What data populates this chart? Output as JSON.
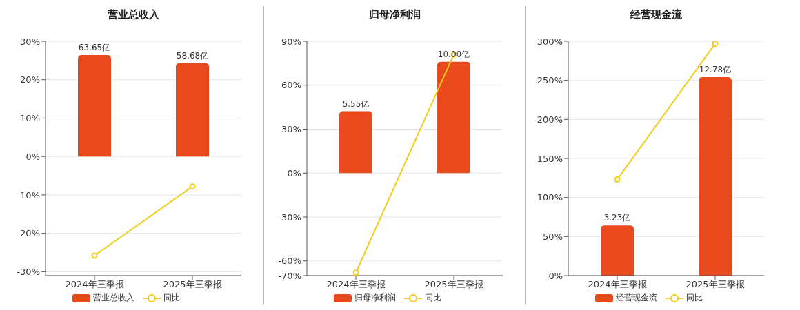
{
  "chart_data": [
    {
      "type": "bar",
      "title": "营业总收入",
      "categories": [
        "2024年三季报",
        "2025年三季报"
      ],
      "series": [
        {
          "name": "营业总收入",
          "axis": "y2",
          "color": "#e84a1e",
          "values": [
            63.65,
            58.68
          ],
          "value_labels": [
            "63.65亿",
            "58.68亿"
          ]
        },
        {
          "name": "同比",
          "type": "line",
          "color": "#f2cc1b",
          "values": [
            -25.8,
            -7.8
          ]
        }
      ],
      "ylim": [
        -31,
        30
      ],
      "yticks": [
        {
          "value": -30,
          "label": "-30%"
        },
        {
          "value": -20,
          "label": "-20%"
        },
        {
          "value": -10,
          "label": "-10%"
        },
        {
          "value": 0,
          "label": "0%"
        },
        {
          "value": 10,
          "label": "10%"
        },
        {
          "value": 20,
          "label": "20%"
        },
        {
          "value": 30,
          "label": "30%"
        }
      ],
      "y2lim": [
        -74.7,
        72.3
      ],
      "grid": "y",
      "legend": "bottom",
      "marker": "circle"
    },
    {
      "type": "bar",
      "title": "归母净利润",
      "categories": [
        "2024年三季报",
        "2025年三季报"
      ],
      "series": [
        {
          "name": "归母净利润",
          "axis": "y2",
          "color": "#e84a1e",
          "values": [
            5.55,
            10.0
          ],
          "value_labels": [
            "5.55亿",
            "10.00亿"
          ]
        },
        {
          "name": "同比",
          "type": "line",
          "color": "#f2cc1b",
          "values": [
            -68,
            81
          ]
        }
      ],
      "ylim": [
        -70,
        90
      ],
      "yticks": [
        {
          "value": -70,
          "label": "-70%"
        },
        {
          "value": -60,
          "label": "-60%"
        },
        {
          "value": -30,
          "label": "-30%"
        },
        {
          "value": 0,
          "label": "0%"
        },
        {
          "value": 30,
          "label": "30%"
        },
        {
          "value": 60,
          "label": "60%"
        },
        {
          "value": 90,
          "label": "90%"
        }
      ],
      "y2lim": [
        -9.21,
        11.84
      ],
      "grid": "y",
      "legend": "bottom",
      "marker": "circle"
    },
    {
      "type": "bar",
      "title": "经营现金流",
      "categories": [
        "2024年三季报",
        "2025年三季报"
      ],
      "series": [
        {
          "name": "经营现金流",
          "axis": "y2",
          "color": "#e84a1e",
          "values": [
            3.23,
            12.78
          ],
          "value_labels": [
            "3.23亿",
            "12.78亿"
          ]
        },
        {
          "name": "同比",
          "type": "line",
          "color": "#f2cc1b",
          "values": [
            123,
            297
          ]
        }
      ],
      "ylim": [
        0,
        300
      ],
      "yticks": [
        {
          "value": 0,
          "label": "0%"
        },
        {
          "value": 50,
          "label": "50%"
        },
        {
          "value": 100,
          "label": "100%"
        },
        {
          "value": 150,
          "label": "150%"
        },
        {
          "value": 200,
          "label": "200%"
        },
        {
          "value": 250,
          "label": "250%"
        },
        {
          "value": 300,
          "label": "300%"
        }
      ],
      "y2lim": [
        0,
        15.09
      ],
      "grid": "y",
      "legend": "bottom",
      "marker": "circle"
    }
  ]
}
